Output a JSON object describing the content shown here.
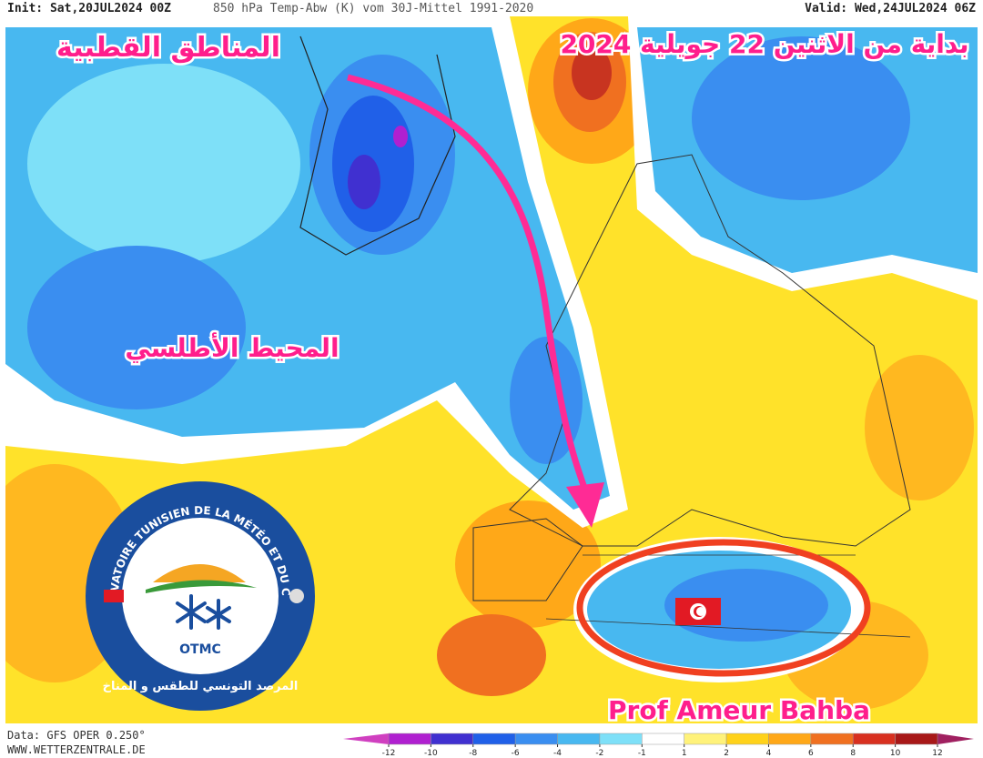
{
  "header": {
    "init": "Init: Sat,20JUL2024 00Z",
    "title": "850 hPa Temp-Abw (K) vom 30J-Mittel 1991-2020",
    "valid": "Valid: Wed,24JUL2024 06Z"
  },
  "annotations": {
    "polar": "المناطق القطبية",
    "date": "بداية من الاثنين 22 جويلية 2024",
    "atlantic": "المحيط الأطلسي",
    "author": "Prof Ameur Bahba"
  },
  "logo": {
    "ring_text": "OBSERVATOIRE TUNISIEN DE LA MÉTÉO ET DU CLIMAT",
    "acronym": "OTMC",
    "arabic_name": "المرصد التونسي للطقس و المناخ"
  },
  "footer": {
    "data_source": "Data: GFS OPER 0.250°",
    "website": "WWW.WETTERZENTRALE.DE"
  },
  "colorbar": {
    "ticks": [
      -12,
      -10,
      -8,
      -6,
      -4,
      -2,
      -1,
      1,
      2,
      4,
      6,
      8,
      10,
      12
    ],
    "colors": [
      "#d040c0",
      "#b020d0",
      "#4030d0",
      "#2060e8",
      "#3a8ef0",
      "#48b8f0",
      "#7ee0f8",
      "#ffffff",
      "#fff27a",
      "#ffd21a",
      "#ffa818",
      "#f07020",
      "#d83020",
      "#a81818",
      "#a02060"
    ]
  }
}
